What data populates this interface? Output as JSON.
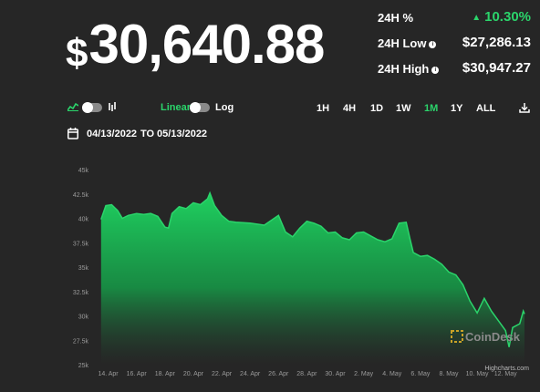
{
  "price": {
    "currency": "$",
    "value": "30,640.88"
  },
  "stats": {
    "change": {
      "label": "24H %",
      "arrow": "▲",
      "value": "10.30%"
    },
    "low": {
      "label": "24H Low",
      "value": "$27,286.13"
    },
    "high": {
      "label": "24H High",
      "value": "$30,947.27"
    }
  },
  "controls": {
    "scale_linear": "Linear",
    "scale_log": "Log",
    "ranges": [
      "1H",
      "4H",
      "1D",
      "1W",
      "1M",
      "1Y",
      "ALL"
    ],
    "active_range": "1M"
  },
  "date_range": {
    "from": "04/13/2022",
    "to_label": "TO",
    "to": "05/13/2022"
  },
  "branding": {
    "watermark": "CoinDesk",
    "credit": "Highcharts.com"
  },
  "colors": {
    "accent": "#2bd46b",
    "background": "#262626"
  },
  "chart_data": {
    "type": "area",
    "title": "",
    "xlabel": "",
    "ylabel": "",
    "ylim": [
      25000,
      45000
    ],
    "y_ticks": [
      "25k",
      "27.5k",
      "30k",
      "32.5k",
      "35k",
      "37.5k",
      "40k",
      "42.5k",
      "45k"
    ],
    "x_ticks": [
      "14. Apr",
      "16. Apr",
      "18. Apr",
      "20. Apr",
      "22. Apr",
      "24. Apr",
      "26. Apr",
      "28. Apr",
      "30. Apr",
      "2. May",
      "4. May",
      "6. May",
      "8. May",
      "10. May",
      "12. May"
    ],
    "x_start": "2022-04-13",
    "series": [
      {
        "name": "",
        "points": [
          [
            "2022-04-13T12:00",
            39900
          ],
          [
            "2022-04-13T20:00",
            41300
          ],
          [
            "2022-04-14T06:00",
            41400
          ],
          [
            "2022-04-14T16:00",
            40800
          ],
          [
            "2022-04-15T00:00",
            40000
          ],
          [
            "2022-04-15T10:00",
            40300
          ],
          [
            "2022-04-16T00:00",
            40500
          ],
          [
            "2022-04-16T12:00",
            40400
          ],
          [
            "2022-04-17T00:00",
            40500
          ],
          [
            "2022-04-17T12:00",
            40200
          ],
          [
            "2022-04-18T00:00",
            39100
          ],
          [
            "2022-04-18T06:00",
            39000
          ],
          [
            "2022-04-18T12:00",
            40500
          ],
          [
            "2022-04-19T00:00",
            41200
          ],
          [
            "2022-04-19T12:00",
            41000
          ],
          [
            "2022-04-20T00:00",
            41600
          ],
          [
            "2022-04-20T12:00",
            41400
          ],
          [
            "2022-04-21T00:00",
            42000
          ],
          [
            "2022-04-21T04:00",
            42600
          ],
          [
            "2022-04-21T12:00",
            41300
          ],
          [
            "2022-04-22T00:00",
            40300
          ],
          [
            "2022-04-22T12:00",
            39700
          ],
          [
            "2022-04-23T00:00",
            39600
          ],
          [
            "2022-04-24T00:00",
            39500
          ],
          [
            "2022-04-25T00:00",
            39300
          ],
          [
            "2022-04-26T00:00",
            40300
          ],
          [
            "2022-04-26T12:00",
            38600
          ],
          [
            "2022-04-27T00:00",
            38100
          ],
          [
            "2022-04-27T12:00",
            39000
          ],
          [
            "2022-04-28T00:00",
            39700
          ],
          [
            "2022-04-28T12:00",
            39500
          ],
          [
            "2022-04-29T00:00",
            39200
          ],
          [
            "2022-04-29T12:00",
            38500
          ],
          [
            "2022-04-30T00:00",
            38600
          ],
          [
            "2022-04-30T12:00",
            38000
          ],
          [
            "2022-05-01T00:00",
            37800
          ],
          [
            "2022-05-01T12:00",
            38500
          ],
          [
            "2022-05-02T00:00",
            38600
          ],
          [
            "2022-05-02T12:00",
            38200
          ],
          [
            "2022-05-03T00:00",
            37800
          ],
          [
            "2022-05-03T12:00",
            37600
          ],
          [
            "2022-05-04T00:00",
            37900
          ],
          [
            "2022-05-04T12:00",
            39500
          ],
          [
            "2022-05-05T00:00",
            39600
          ],
          [
            "2022-05-05T06:00",
            38000
          ],
          [
            "2022-05-05T12:00",
            36500
          ],
          [
            "2022-05-06T00:00",
            36100
          ],
          [
            "2022-05-06T12:00",
            36200
          ],
          [
            "2022-05-07T00:00",
            35800
          ],
          [
            "2022-05-07T12:00",
            35300
          ],
          [
            "2022-05-08T00:00",
            34500
          ],
          [
            "2022-05-08T12:00",
            34200
          ],
          [
            "2022-05-09T00:00",
            33200
          ],
          [
            "2022-05-09T12:00",
            31500
          ],
          [
            "2022-05-10T00:00",
            30300
          ],
          [
            "2022-05-10T12:00",
            31800
          ],
          [
            "2022-05-11T00:00",
            30500
          ],
          [
            "2022-05-11T12:00",
            29500
          ],
          [
            "2022-05-12T00:00",
            28500
          ],
          [
            "2022-05-12T06:00",
            26800
          ],
          [
            "2022-05-12T12:00",
            28800
          ],
          [
            "2022-05-13T00:00",
            29200
          ],
          [
            "2022-05-13T06:00",
            30500
          ],
          [
            "2022-05-13T08:00",
            30200
          ]
        ]
      }
    ],
    "grid": false,
    "legend": "none"
  }
}
